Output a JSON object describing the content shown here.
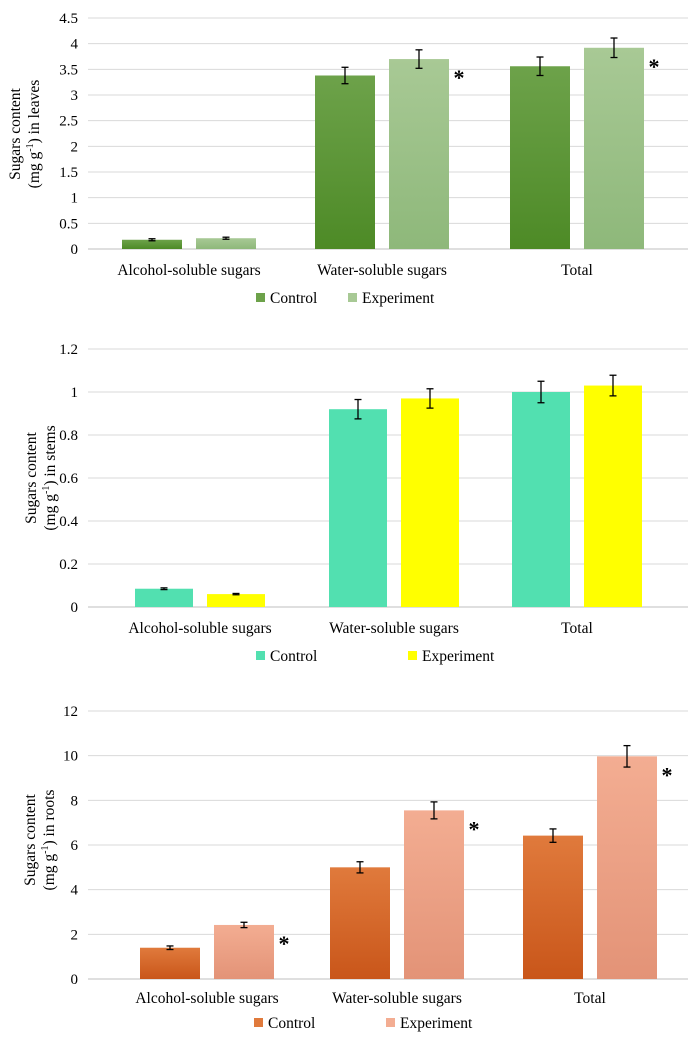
{
  "chart_data": [
    {
      "type": "bar",
      "categories": [
        "Alcohol-soluble sugars",
        "Water-soluble sugars",
        "Total"
      ],
      "series": [
        {
          "name": "Control",
          "values": [
            0.18,
            3.38,
            3.56
          ],
          "errors": [
            0.02,
            0.16,
            0.18
          ],
          "color_top": "#6da24a",
          "color_bottom": "#4d8a26"
        },
        {
          "name": "Experiment",
          "values": [
            0.21,
            3.7,
            3.92
          ],
          "errors": [
            0.02,
            0.18,
            0.19
          ],
          "color_top": "#a8c995",
          "color_bottom": "#8eb87a"
        }
      ],
      "significance": [
        [
          false,
          false,
          false
        ],
        [
          false,
          true,
          true
        ]
      ],
      "significance_mark": "*",
      "ylabel_lines": [
        "Sugars content",
        "(mg g-1) in leaves"
      ],
      "ylabel_parts": {
        "pre": "(mg g",
        "sup": "-1",
        "post": ") in leaves"
      },
      "ylabel_line1": "Sugars content",
      "ylim": [
        0,
        4.5
      ],
      "yticks": [
        0,
        0.5,
        1,
        1.5,
        2,
        2.5,
        3,
        3.5,
        4,
        4.5
      ],
      "ytick_labels": [
        "0",
        "0.5",
        "1",
        "1.5",
        "2",
        "2.5",
        "3",
        "3.5",
        "4",
        "4.5"
      ],
      "grid": true,
      "legend_placement": "bottom"
    },
    {
      "type": "bar",
      "categories": [
        "Alcohol-soluble sugars",
        "Water-soluble sugars",
        "Total"
      ],
      "series": [
        {
          "name": "Control",
          "values": [
            0.085,
            0.92,
            1.0
          ],
          "errors": [
            0.004,
            0.045,
            0.05
          ],
          "color_top": "#52e0b0",
          "color_bottom": "#52e0b0"
        },
        {
          "name": "Experiment",
          "values": [
            0.06,
            0.97,
            1.03
          ],
          "errors": [
            0.003,
            0.045,
            0.048
          ],
          "color_top": "#ffff00",
          "color_bottom": "#ffff00"
        }
      ],
      "significance": [
        [
          false,
          false,
          false
        ],
        [
          false,
          false,
          false
        ]
      ],
      "significance_mark": "*",
      "ylabel_lines": [
        "Sugars content",
        "(mg g-1) in stems"
      ],
      "ylabel_parts": {
        "pre": "(mg g",
        "sup": "-1",
        "post": ") in stems"
      },
      "ylabel_line1": "Sugars content",
      "ylim": [
        0,
        1.2
      ],
      "yticks": [
        0,
        0.2,
        0.4,
        0.6,
        0.8,
        1,
        1.2
      ],
      "ytick_labels": [
        "0",
        "0.2",
        "0.4",
        "0.6",
        "0.8",
        "1",
        "1.2"
      ],
      "grid": true,
      "legend_placement": "bottom"
    },
    {
      "type": "bar",
      "categories": [
        "Alcohol-soluble sugars",
        "Water-soluble sugars",
        "Total"
      ],
      "series": [
        {
          "name": "Control",
          "values": [
            1.4,
            5.0,
            6.42
          ],
          "errors": [
            0.08,
            0.25,
            0.3
          ],
          "color_top": "#e07a3c",
          "color_bottom": "#c9561a"
        },
        {
          "name": "Experiment",
          "values": [
            2.42,
            7.55,
            9.97
          ],
          "errors": [
            0.12,
            0.38,
            0.48
          ],
          "color_top": "#f3ad92",
          "color_bottom": "#e39377"
        }
      ],
      "significance": [
        [
          false,
          false,
          false
        ],
        [
          true,
          true,
          true
        ]
      ],
      "significance_mark": "*",
      "ylabel_lines": [
        "Sugars content",
        "(mg g-1) in roots"
      ],
      "ylabel_parts": {
        "pre": "(mg g",
        "sup": "-1",
        "post": ") in roots"
      },
      "ylabel_line1": "Sugars content",
      "ylim": [
        0,
        12
      ],
      "yticks": [
        0,
        2,
        4,
        6,
        8,
        10,
        12
      ],
      "ytick_labels": [
        "0",
        "2",
        "4",
        "6",
        "8",
        "10",
        "12"
      ],
      "grid": true,
      "legend_placement": "bottom"
    }
  ]
}
